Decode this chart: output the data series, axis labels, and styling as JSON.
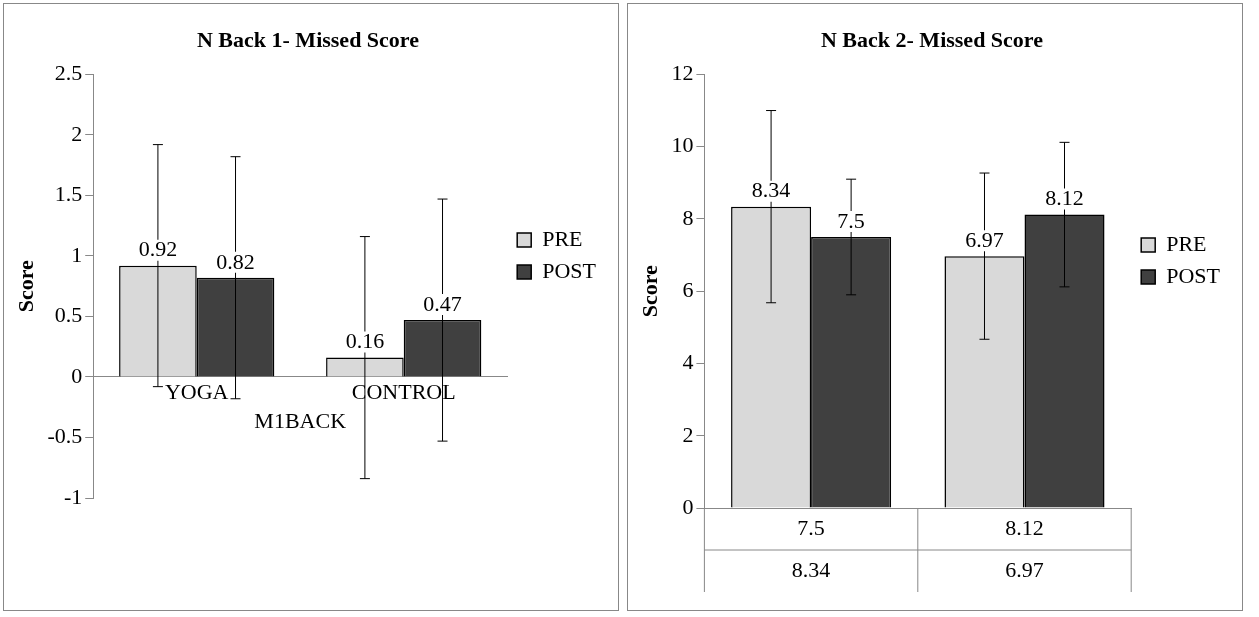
{
  "chart_data": [
    {
      "type": "bar",
      "title": "N Back 1- Missed Score",
      "xlabel": "M1BACK",
      "ylabel": "Score",
      "categories": [
        "YOGA",
        "CONTROL"
      ],
      "series": [
        {
          "name": "PRE",
          "color": "#d9d9d9",
          "values": [
            0.92,
            0.16
          ],
          "errors": [
            1,
            1
          ]
        },
        {
          "name": "POST",
          "color": "#404040",
          "values": [
            0.82,
            0.47
          ],
          "errors": [
            1,
            1
          ]
        }
      ],
      "ylim": [
        -1,
        2.5
      ],
      "yticks": [
        -1,
        -0.5,
        0,
        0.5,
        1,
        1.5,
        2,
        2.5
      ],
      "legend": "right",
      "data_labels": true
    },
    {
      "type": "bar",
      "title": "N Back 2- Missed Score",
      "ylabel": "Score",
      "categories": [
        null,
        null
      ],
      "series": [
        {
          "name": "PRE",
          "color": "#d9d9d9",
          "values": [
            8.34,
            6.97
          ],
          "errors": [
            2.66,
            2.3
          ],
          "value_labels": [
            "8.34",
            "6.97"
          ]
        },
        {
          "name": "POST",
          "color": "#404040",
          "values": [
            7.5,
            8.12
          ],
          "errors": [
            1.6,
            2
          ],
          "value_labels": [
            "7.5",
            "8.12"
          ]
        }
      ],
      "ylim": [
        0,
        12
      ],
      "yticks": [
        0,
        2,
        4,
        6,
        8,
        10,
        12
      ],
      "legend": "right",
      "annotations": [
        "7.5",
        "8.12",
        "8.34",
        "6.97"
      ]
    }
  ]
}
